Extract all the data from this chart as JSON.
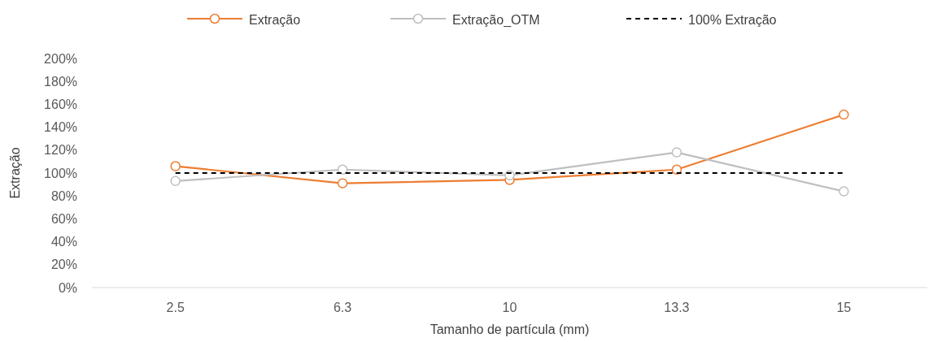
{
  "chart_data": {
    "type": "line",
    "xlabel": "Tamanho de partícula (mm)",
    "ylabel": "Extração",
    "categories": [
      "2.5",
      "6.3",
      "10",
      "13.3",
      "15"
    ],
    "series": [
      {
        "name": "Extração",
        "color": "#ed7d31",
        "values": [
          106,
          91,
          94,
          103,
          151
        ],
        "marker": "circle",
        "line_style": "solid"
      },
      {
        "name": "Extração_OTM",
        "color": "#bfbfbf",
        "values": [
          93,
          103,
          98,
          118,
          84
        ],
        "marker": "circle",
        "line_style": "solid"
      },
      {
        "name": "100% Extração",
        "color": "#000000",
        "values": [
          100,
          100,
          100,
          100,
          100
        ],
        "marker": "none",
        "line_style": "dashed"
      }
    ],
    "ylim": [
      0,
      200
    ],
    "yticks": [
      {
        "value": 0,
        "label": "0%"
      },
      {
        "value": 20,
        "label": "20%"
      },
      {
        "value": 40,
        "label": "40%"
      },
      {
        "value": 60,
        "label": "60%"
      },
      {
        "value": 80,
        "label": "80%"
      },
      {
        "value": 100,
        "label": "100%"
      },
      {
        "value": 120,
        "label": "120%"
      },
      {
        "value": 140,
        "label": "140%"
      },
      {
        "value": 160,
        "label": "160%"
      },
      {
        "value": 180,
        "label": "180%"
      },
      {
        "value": 200,
        "label": "200%"
      }
    ],
    "grid": false,
    "legend": "top"
  }
}
